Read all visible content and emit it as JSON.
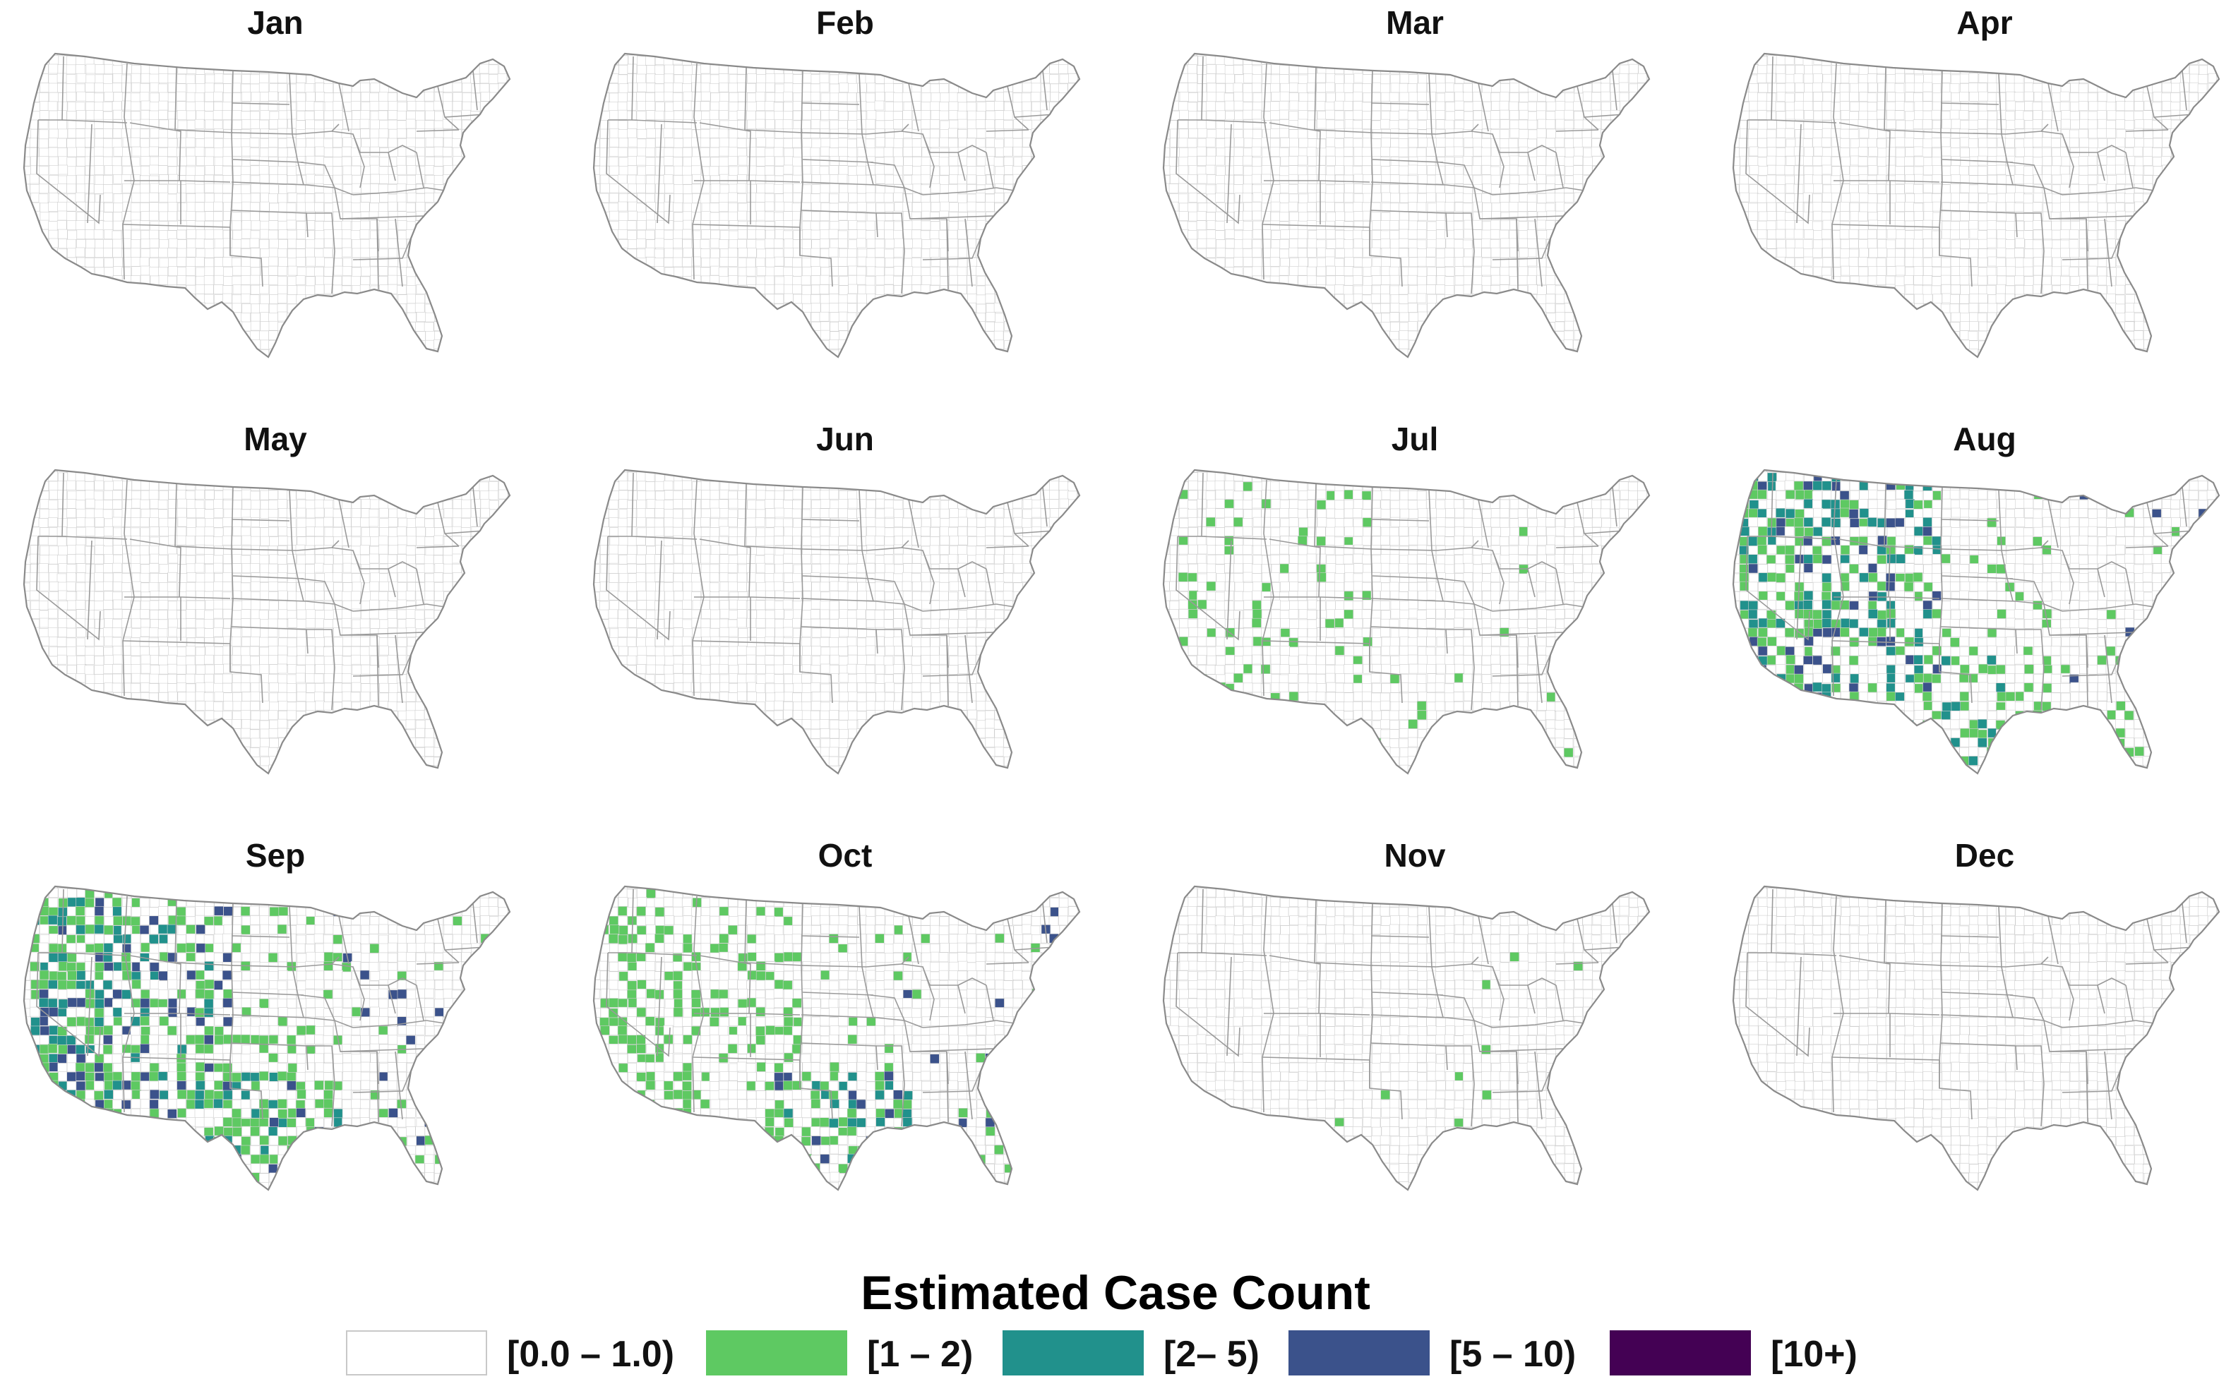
{
  "legend": {
    "title": "Estimated Case Count",
    "items": [
      {
        "label": "[0.0 – 1.0)",
        "color": "#ffffff"
      },
      {
        "label": "[1 – 2)",
        "color": "#5ec962"
      },
      {
        "label": "[2– 5)",
        "color": "#21918c"
      },
      {
        "label": "[5 – 10)",
        "color": "#3b528b"
      },
      {
        "label": "[10+)",
        "color": "#440154"
      }
    ]
  },
  "panels": [
    {
      "month": "Jan",
      "pattern": []
    },
    {
      "month": "Feb",
      "pattern": []
    },
    {
      "month": "Mar",
      "pattern": []
    },
    {
      "month": "Apr",
      "pattern": []
    },
    {
      "month": "May",
      "pattern": []
    },
    {
      "month": "Jun",
      "pattern": []
    },
    {
      "month": "Jul",
      "pattern": [
        {
          "region": "west",
          "density": 0.12,
          "levels": [
            1
          ]
        },
        {
          "region": "mountain",
          "density": 0.1,
          "levels": [
            1
          ]
        },
        {
          "region": "texas",
          "density": 0.04,
          "levels": [
            1
          ]
        },
        {
          "region": "florida",
          "density": 0.05,
          "levels": [
            1
          ]
        },
        {
          "region": "east",
          "density": 0.015,
          "levels": [
            1
          ]
        }
      ]
    },
    {
      "month": "Aug",
      "pattern": [
        {
          "region": "west",
          "density": 0.55,
          "levels": [
            1,
            1,
            1,
            2,
            2,
            3
          ]
        },
        {
          "region": "mountain",
          "density": 0.4,
          "levels": [
            1,
            1,
            2,
            3
          ]
        },
        {
          "region": "plains",
          "density": 0.12,
          "levels": [
            1
          ]
        },
        {
          "region": "texas",
          "density": 0.35,
          "levels": [
            1,
            1,
            1,
            2
          ]
        },
        {
          "region": "florida",
          "density": 0.2,
          "levels": [
            1
          ]
        },
        {
          "region": "east",
          "density": 0.05,
          "levels": [
            1,
            1,
            3
          ]
        }
      ]
    },
    {
      "month": "Sep",
      "pattern": [
        {
          "region": "west",
          "density": 0.65,
          "levels": [
            1,
            1,
            1,
            2,
            2,
            3
          ]
        },
        {
          "region": "mountain",
          "density": 0.45,
          "levels": [
            1,
            1,
            2,
            3
          ]
        },
        {
          "region": "plains",
          "density": 0.15,
          "levels": [
            1
          ]
        },
        {
          "region": "texas",
          "density": 0.45,
          "levels": [
            1,
            1,
            1,
            2,
            3
          ]
        },
        {
          "region": "florida",
          "density": 0.3,
          "levels": [
            1,
            1,
            3
          ]
        },
        {
          "region": "east",
          "density": 0.08,
          "levels": [
            1,
            1,
            3
          ]
        }
      ]
    },
    {
      "month": "Oct",
      "pattern": [
        {
          "region": "west",
          "density": 0.4,
          "levels": [
            1
          ]
        },
        {
          "region": "mountain",
          "density": 0.25,
          "levels": [
            1
          ]
        },
        {
          "region": "plains",
          "density": 0.08,
          "levels": [
            1
          ]
        },
        {
          "region": "texas",
          "density": 0.4,
          "levels": [
            1,
            1,
            1,
            2,
            3
          ]
        },
        {
          "region": "florida",
          "density": 0.2,
          "levels": [
            1,
            1,
            3
          ]
        },
        {
          "region": "east",
          "density": 0.05,
          "levels": [
            1,
            3
          ]
        }
      ]
    },
    {
      "month": "Nov",
      "pattern": [
        {
          "region": "texas",
          "density": 0.04,
          "levels": [
            1
          ]
        },
        {
          "region": "florida",
          "density": 0.06,
          "levels": [
            1
          ]
        },
        {
          "region": "east",
          "density": 0.01,
          "levels": [
            1
          ]
        }
      ]
    },
    {
      "month": "Dec",
      "pattern": []
    }
  ]
}
